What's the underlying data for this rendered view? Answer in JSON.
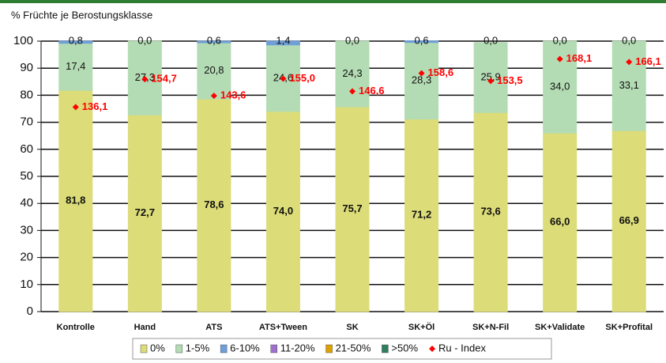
{
  "chart_data": {
    "type": "bar",
    "stacked": true,
    "title": "% Früchte je Berostungsklasse",
    "categories": [
      "Kontrolle",
      "Hand",
      "ATS",
      "ATS+Tween",
      "SK",
      "SK+Öl",
      "SK+N-Fil",
      "SK+Validate",
      "SK+Profital"
    ],
    "ylim": [
      0,
      100
    ],
    "yticks": [
      0,
      10,
      20,
      30,
      40,
      50,
      60,
      70,
      80,
      90,
      100
    ],
    "grid": true,
    "y2lim": [
      0,
      180
    ],
    "series": [
      {
        "name": "0%",
        "color": "#dcdc78",
        "values": [
          81.8,
          72.7,
          78.6,
          74.0,
          75.7,
          71.2,
          73.6,
          66.0,
          66.9
        ],
        "value_labels": [
          "81,8",
          "72,7",
          "78,6",
          "74,0",
          "75,7",
          "71,2",
          "73,6",
          "66,0",
          "66,9"
        ]
      },
      {
        "name": "1-5%",
        "color": "#b4dcb4",
        "values": [
          17.4,
          27.3,
          20.8,
          24.6,
          24.3,
          28.3,
          25.9,
          34.0,
          33.1
        ],
        "value_labels": [
          "17,4",
          "27,3",
          "20,8",
          "24,6",
          "24,3",
          "28,3",
          "25,9",
          "34,0",
          "33,1"
        ]
      },
      {
        "name": "6-10%",
        "color": "#6f9fd8",
        "values": [
          0.8,
          0.0,
          0.6,
          1.4,
          0.0,
          0.6,
          0.0,
          0.0,
          0.0
        ],
        "value_labels": [
          "0,8",
          "0,0",
          "0,6",
          "1,4",
          "0,0",
          "0,6",
          "0,0",
          "0,0",
          "0,0"
        ]
      },
      {
        "name": "11-20%",
        "color": "#a070d0",
        "values": [
          0,
          0,
          0,
          0,
          0,
          0,
          0,
          0,
          0
        ]
      },
      {
        "name": "21-50%",
        "color": "#e0a000",
        "values": [
          0,
          0,
          0,
          0,
          0,
          0,
          0,
          0,
          0
        ]
      },
      {
        "name": ">50%",
        "color": "#2f7f5f",
        "values": [
          0,
          0,
          0,
          0,
          0,
          0,
          0,
          0,
          0
        ]
      },
      {
        "name": "Ru - Index",
        "type": "scatter",
        "axis": "y2",
        "color": "#ff0000",
        "values": [
          136.1,
          154.7,
          143.6,
          155.0,
          146.6,
          158.6,
          153.5,
          168.1,
          166.1
        ],
        "value_labels": [
          "136,1",
          "154,7",
          "143,6",
          "155,0",
          "146,6",
          "158,6",
          "153,5",
          "168,1",
          "166,1"
        ]
      }
    ]
  }
}
